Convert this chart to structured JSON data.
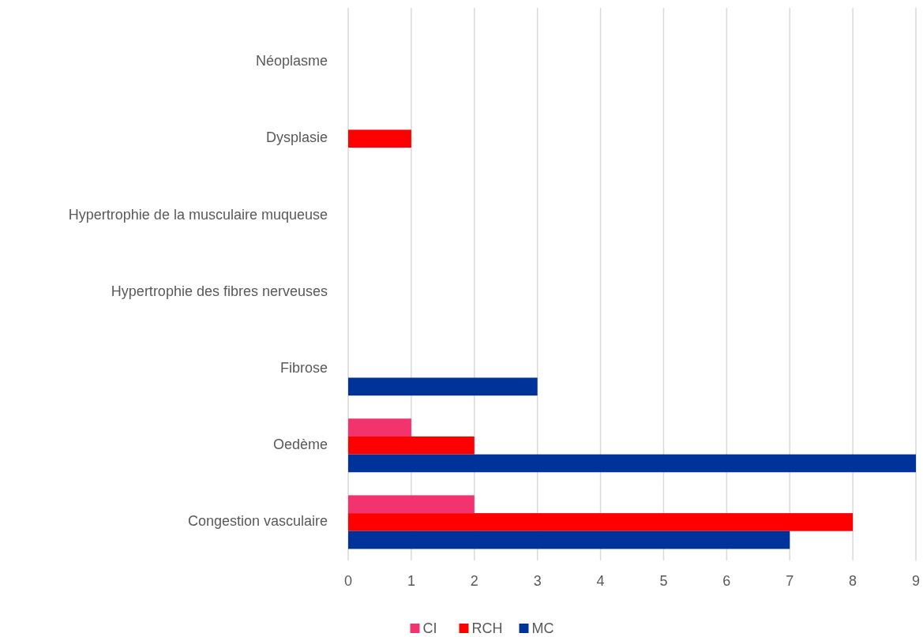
{
  "chart_data": {
    "type": "bar",
    "orientation": "horizontal",
    "categories": [
      "Néoplasme",
      "Dysplasie",
      "Hypertrophie de la musculaire muqueuse",
      "Hypertrophie des fibres nerveuses",
      "Fibrose",
      "Oedème",
      "Congestion vasculaire"
    ],
    "series": [
      {
        "name": "CI",
        "color": "#f2336e",
        "values": [
          0,
          0,
          0,
          0,
          0,
          1,
          2
        ]
      },
      {
        "name": "RCH",
        "color": "#ff0000",
        "values": [
          0,
          1,
          0,
          0,
          0,
          2,
          8
        ]
      },
      {
        "name": "MC",
        "color": "#003399",
        "values": [
          0,
          0,
          0,
          0,
          3,
          9,
          7
        ]
      }
    ],
    "xlim": [
      0,
      9
    ],
    "xticks": [
      0,
      1,
      2,
      3,
      4,
      5,
      6,
      7,
      8,
      9
    ],
    "grid": "x",
    "legend": "bottom"
  }
}
